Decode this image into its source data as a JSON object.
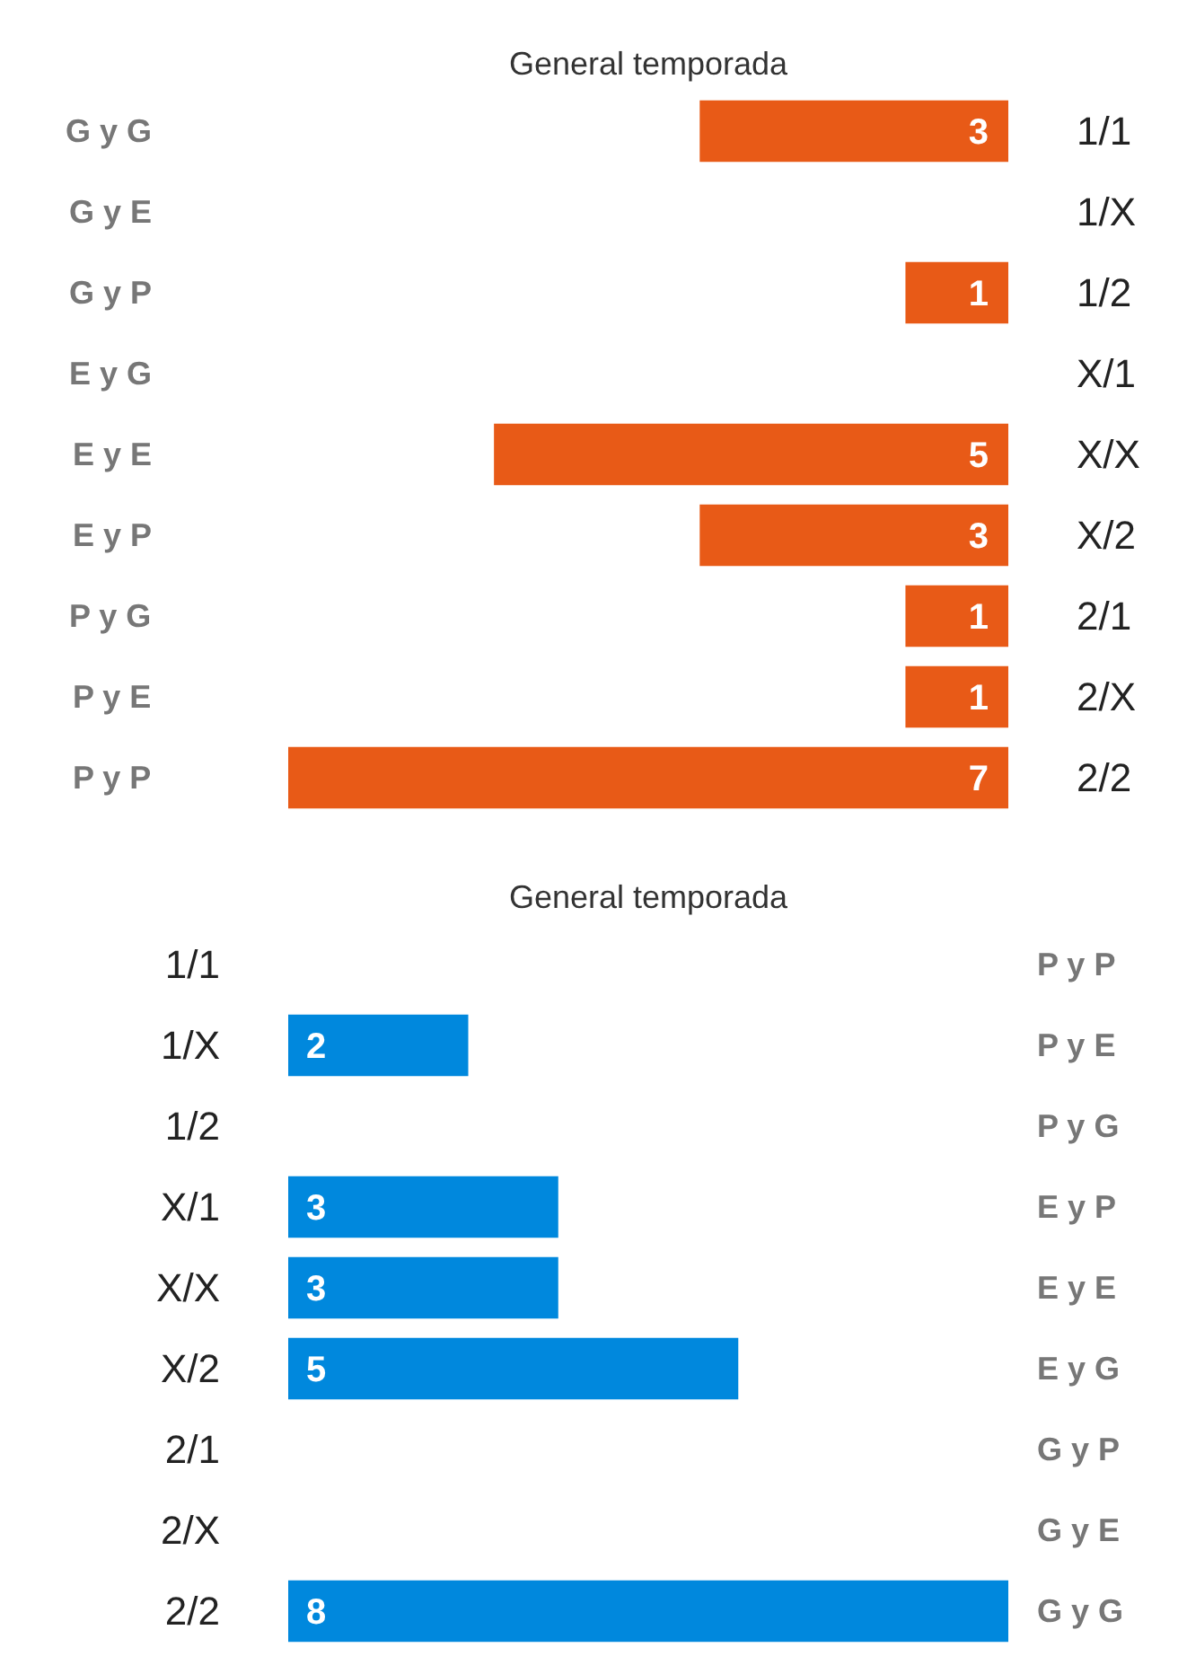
{
  "chart_data": [
    {
      "type": "bar",
      "orientation": "horizontal",
      "title": "General temporada",
      "categories": [
        "1/1",
        "1/X",
        "1/2",
        "X/1",
        "X/X",
        "X/2",
        "2/1",
        "2/X",
        "2/2"
      ],
      "values": [
        3,
        0,
        1,
        0,
        5,
        3,
        1,
        1,
        7
      ],
      "value_labels": [
        "3",
        null,
        "1",
        null,
        "5",
        "3",
        "1",
        "1",
        "7"
      ],
      "color": "#e85a17",
      "xlim": [
        7,
        0
      ],
      "tick_labels": "y",
      "annotations": [
        "G y G",
        "G y E",
        "G y P",
        "E y G",
        "E y E",
        "E y P",
        "P y G",
        "P y E",
        "P y P"
      ]
    },
    {
      "type": "bar",
      "orientation": "horizontal",
      "title": "General temporada",
      "categories": [
        "1/1",
        "1/X",
        "1/2",
        "X/1",
        "X/X",
        "X/2",
        "2/1",
        "2/X",
        "2/2"
      ],
      "values": [
        0,
        2,
        0,
        3,
        3,
        5,
        0,
        0,
        8
      ],
      "value_labels": [
        null,
        "2",
        null,
        "3",
        "3",
        "5",
        null,
        null,
        "8"
      ],
      "color": "#0088dd",
      "xlim": [
        0,
        8
      ],
      "tick_labels": "y",
      "annotations": [
        "P y P",
        "P y E",
        "P y G",
        "E y P",
        "E y E",
        "E y G",
        "G y P",
        "G y E",
        "G y G"
      ]
    }
  ]
}
